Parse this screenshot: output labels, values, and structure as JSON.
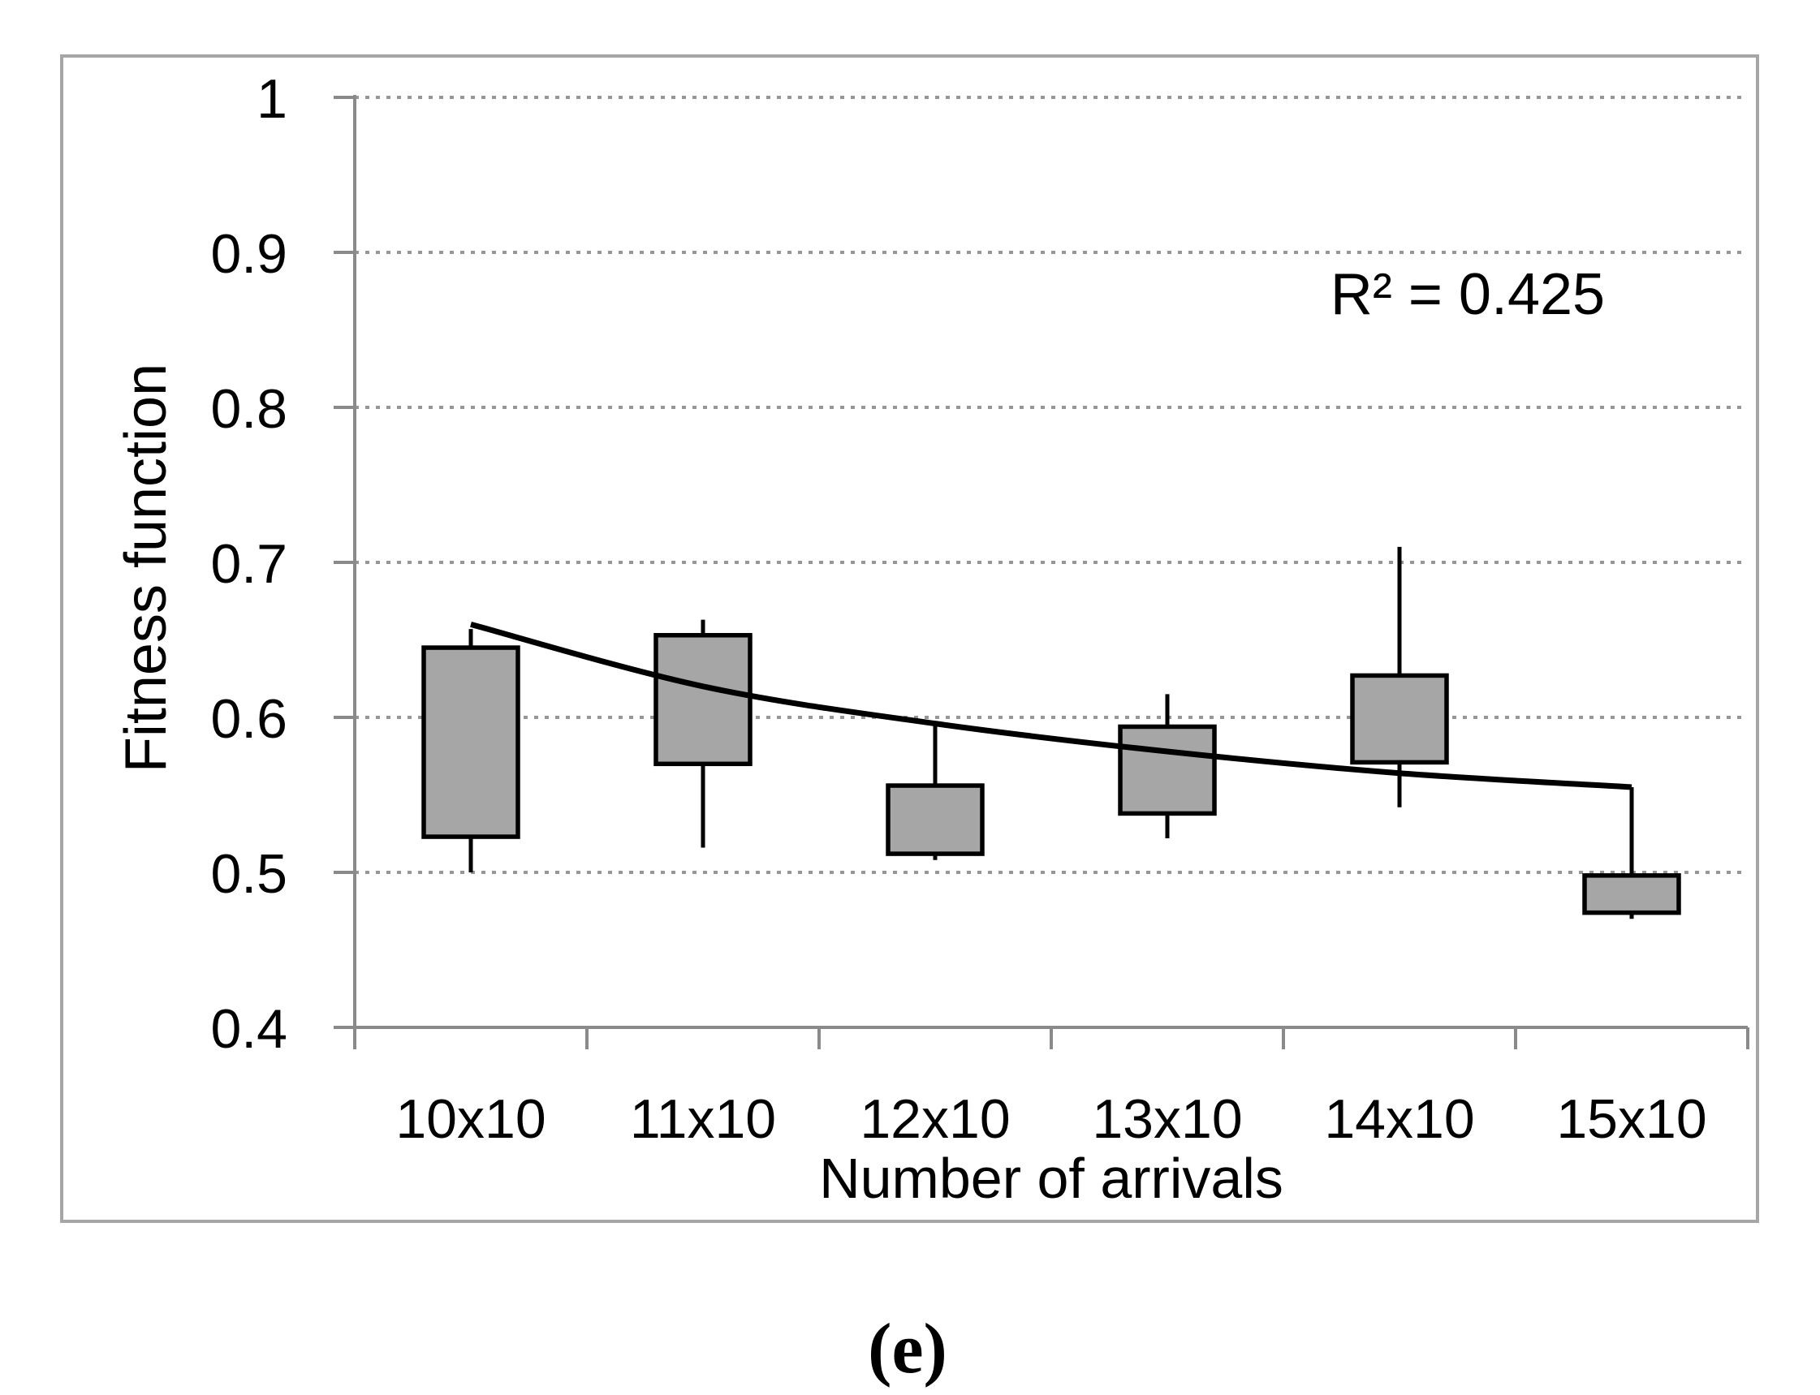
{
  "figure": {
    "caption": "(e)"
  },
  "chart_data": {
    "type": "box-whisker",
    "title": "",
    "xlabel": "Number of arrivals",
    "ylabel": "Fitness function",
    "annotation": "R² = 0.425",
    "categories": [
      "10x10",
      "11x10",
      "12x10",
      "13x10",
      "14x10",
      "15x10"
    ],
    "y_axis": {
      "min": 0.4,
      "max": 1.0,
      "tick_values": [
        1.0,
        0.9,
        0.8,
        0.7,
        0.6,
        0.5,
        0.4
      ],
      "tick_labels": [
        "1",
        "0.9",
        "0.8",
        "0.7",
        "0.6",
        "0.5",
        "0.4"
      ],
      "grid": "dotted horizontal"
    },
    "boxes": [
      {
        "category": "10x10",
        "whisker_low": 0.5,
        "box_low": 0.523,
        "box_high": 0.645,
        "whisker_high": 0.657
      },
      {
        "category": "11x10",
        "whisker_low": 0.516,
        "box_low": 0.57,
        "box_high": 0.653,
        "whisker_high": 0.663
      },
      {
        "category": "12x10",
        "whisker_low": 0.508,
        "box_low": 0.512,
        "box_high": 0.556,
        "whisker_high": 0.596
      },
      {
        "category": "13x10",
        "whisker_low": 0.522,
        "box_low": 0.538,
        "box_high": 0.594,
        "whisker_high": 0.615
      },
      {
        "category": "14x10",
        "whisker_low": 0.542,
        "box_low": 0.571,
        "box_high": 0.627,
        "whisker_high": 0.71
      },
      {
        "category": "15x10",
        "whisker_low": 0.47,
        "box_low": 0.474,
        "box_high": 0.498,
        "whisker_high": 0.555
      }
    ],
    "trendline": {
      "type": "power",
      "r_squared": 0.425,
      "values_at_categories": [
        0.66,
        0.62,
        0.596,
        0.578,
        0.564,
        0.555
      ]
    },
    "legend": "none",
    "colors": {
      "box_fill": "#a6a6a6",
      "box_border": "#000000",
      "whisker": "#000000",
      "trendline": "#000000",
      "axis": "#8a8a8a",
      "gridline": "#969696",
      "frame_border": "#a6a6a6",
      "text": "#000000",
      "background": "#ffffff"
    }
  }
}
